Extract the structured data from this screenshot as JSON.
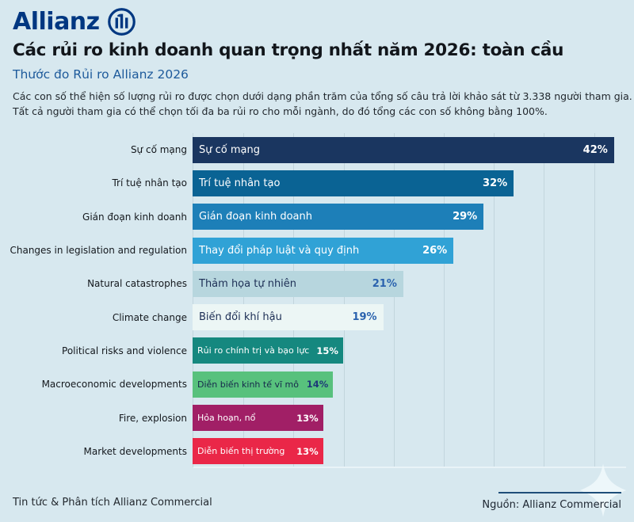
{
  "page": {
    "background_color": "#d7e8ef"
  },
  "header": {
    "logo_text": "Allianz",
    "logo_color": "#003781",
    "title": "Các rủi ro kinh doanh quan trọng nhất năm 2026: toàn cầu",
    "subtitle": "Thước đo Rủi ro Allianz 2026",
    "description_line1": "Các con số thể hiện số lượng rủi ro được chọn dưới dạng phần trăm của tổng số câu trả lời khảo sát từ 3.338 người tham gia.",
    "description_line2": "Tất cả người tham gia có thể chọn tối đa ba rủi ro cho mỗi ngành, do đó tổng các con số không bằng 100%."
  },
  "chart_data": {
    "type": "bar",
    "orientation": "horizontal",
    "unit": "%",
    "axis_max": 43.2,
    "gridline_step_pct": 5,
    "gridline_max_pct": 40,
    "grid_on": true,
    "categories": [
      "Sự cố mạng",
      "Trí tuệ nhân tạo",
      "Gián đoạn kinh doanh",
      "Changes in legislation and regulation",
      "Natural catastrophes",
      "Climate change",
      "Political risks and violence",
      "Macroeconomic developments",
      "Fire, explosion",
      "Market developments"
    ],
    "bar_labels": [
      "Sự cố mạng",
      "Trí tuệ nhân tạo",
      "Gián đoạn kinh doanh",
      "Thay đổi pháp luật và quy định",
      "Thảm họa tự nhiên",
      "Biến đổi khí hậu",
      "Rủi ro chính trị và bạo lực",
      "Diễn biến kinh tế vĩ mô",
      "Hỏa hoạn, nổ",
      "Diễn biến thị trường"
    ],
    "values": [
      42,
      32,
      29,
      26,
      21,
      19,
      15,
      14,
      13,
      13
    ],
    "value_labels": [
      "42%",
      "32%",
      "29%",
      "26%",
      "21%",
      "19%",
      "15%",
      "14%",
      "13%",
      "13%"
    ],
    "bar_colors": [
      "#1a3660",
      "#0a6394",
      "#1d7fb8",
      "#30a2d6",
      "#b7d6de",
      "#ecf6f5",
      "#15887f",
      "#58c17d",
      "#a11f66",
      "#ea2748"
    ],
    "label_text_colors": [
      "#ffffff",
      "#ffffff",
      "#ffffff",
      "#ffffff",
      "#1d2f55",
      "#1d2f55",
      "#ffffff",
      "#15284b",
      "#ffffff",
      "#ffffff"
    ],
    "value_text_colors": [
      "#ffffff",
      "#ffffff",
      "#ffffff",
      "#ffffff",
      "#2a62ae",
      "#2a62ae",
      "#ffffff",
      "#1d3a78",
      "#ffffff",
      "#ffffff"
    ]
  },
  "footer": {
    "left_text": "Tin tức & Phân tích Allianz Commercial",
    "source_text": "Nguồn: Allianz Commercial",
    "source_rule_color": "#1f4e79",
    "sparkle_icon": "four-point-star"
  }
}
